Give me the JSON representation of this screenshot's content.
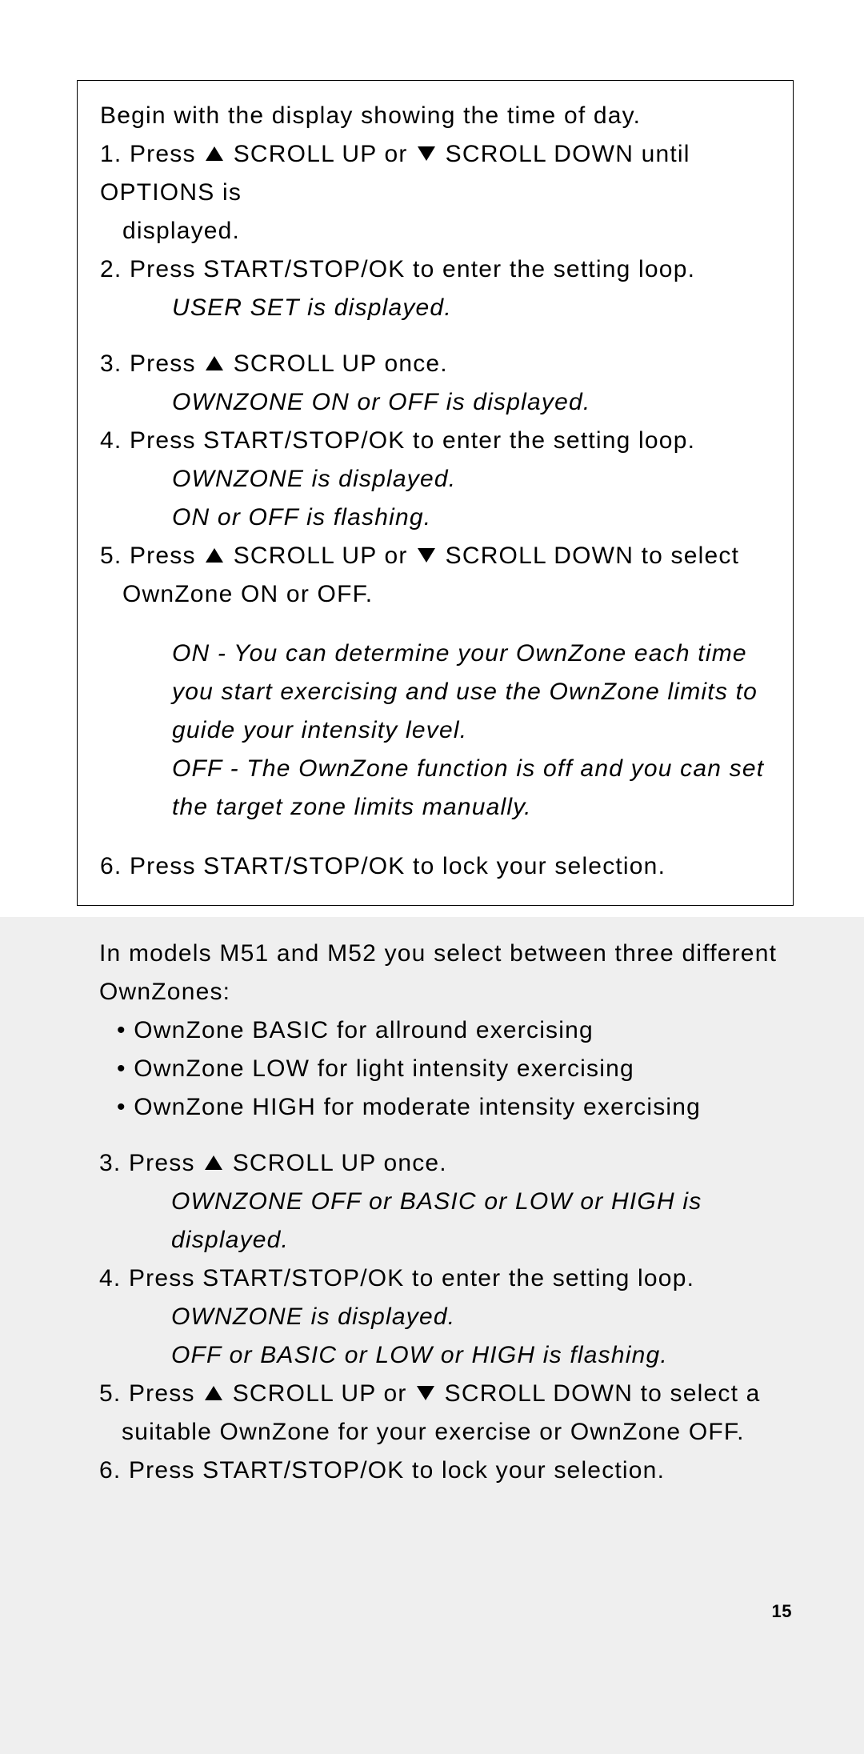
{
  "box": {
    "intro": "Begin with the display showing the time of day.",
    "step1_a": "1. Press ",
    "step1_b": " SCROLL UP or ",
    "step1_c": " SCROLL DOWN until OPTIONS is",
    "step1_d": "displayed.",
    "step2": "2. Press START/STOP/OK to enter the setting loop.",
    "step2_res": "USER SET is displayed.",
    "step3_a": "3. Press ",
    "step3_b": " SCROLL UP once.",
    "step3_res": "OWNZONE ON or OFF is displayed.",
    "step4": "4. Press START/STOP/OK to enter the setting loop.",
    "step4_res1": "OWNZONE is displayed.",
    "step4_res2": "ON or OFF is flashing.",
    "step5_a": "5. Press ",
    "step5_b": " SCROLL UP or ",
    "step5_c": " SCROLL DOWN to select",
    "step5_d": "OwnZone ON or OFF.",
    "on_desc": "ON -  You can determine your OwnZone each time you start exercising and use the OwnZone limits to guide your intensity level.",
    "off_desc": "OFF - The OwnZone function is off and you can set the target zone limits manually.",
    "step6": "6. Press START/STOP/OK to lock your selection."
  },
  "gray": {
    "intro": "In models M51 and M52 you select between three different OwnZones:",
    "b1": "OwnZone BASIC for allround exercising",
    "b2": "OwnZone LOW for light intensity exercising",
    "b3": "OwnZone HIGH for moderate intensity exercising",
    "step3_a": "3. Press ",
    "step3_b": " SCROLL UP once.",
    "step3_res1": "OWNZONE OFF or BASIC or LOW or HIGH is",
    "step3_res2": "displayed.",
    "step4": "4. Press START/STOP/OK to enter the setting loop.",
    "step4_res1": "OWNZONE is displayed.",
    "step4_res2": "OFF or BASIC or LOW or HIGH is flashing.",
    "step5_a": "5. Press ",
    "step5_b": " SCROLL UP or ",
    "step5_c": " SCROLL DOWN to select a",
    "step5_d": "suitable OwnZone for your exercise or OwnZone OFF.",
    "step6": "6. Press START/STOP/OK to lock your selection."
  },
  "page_number": "15"
}
